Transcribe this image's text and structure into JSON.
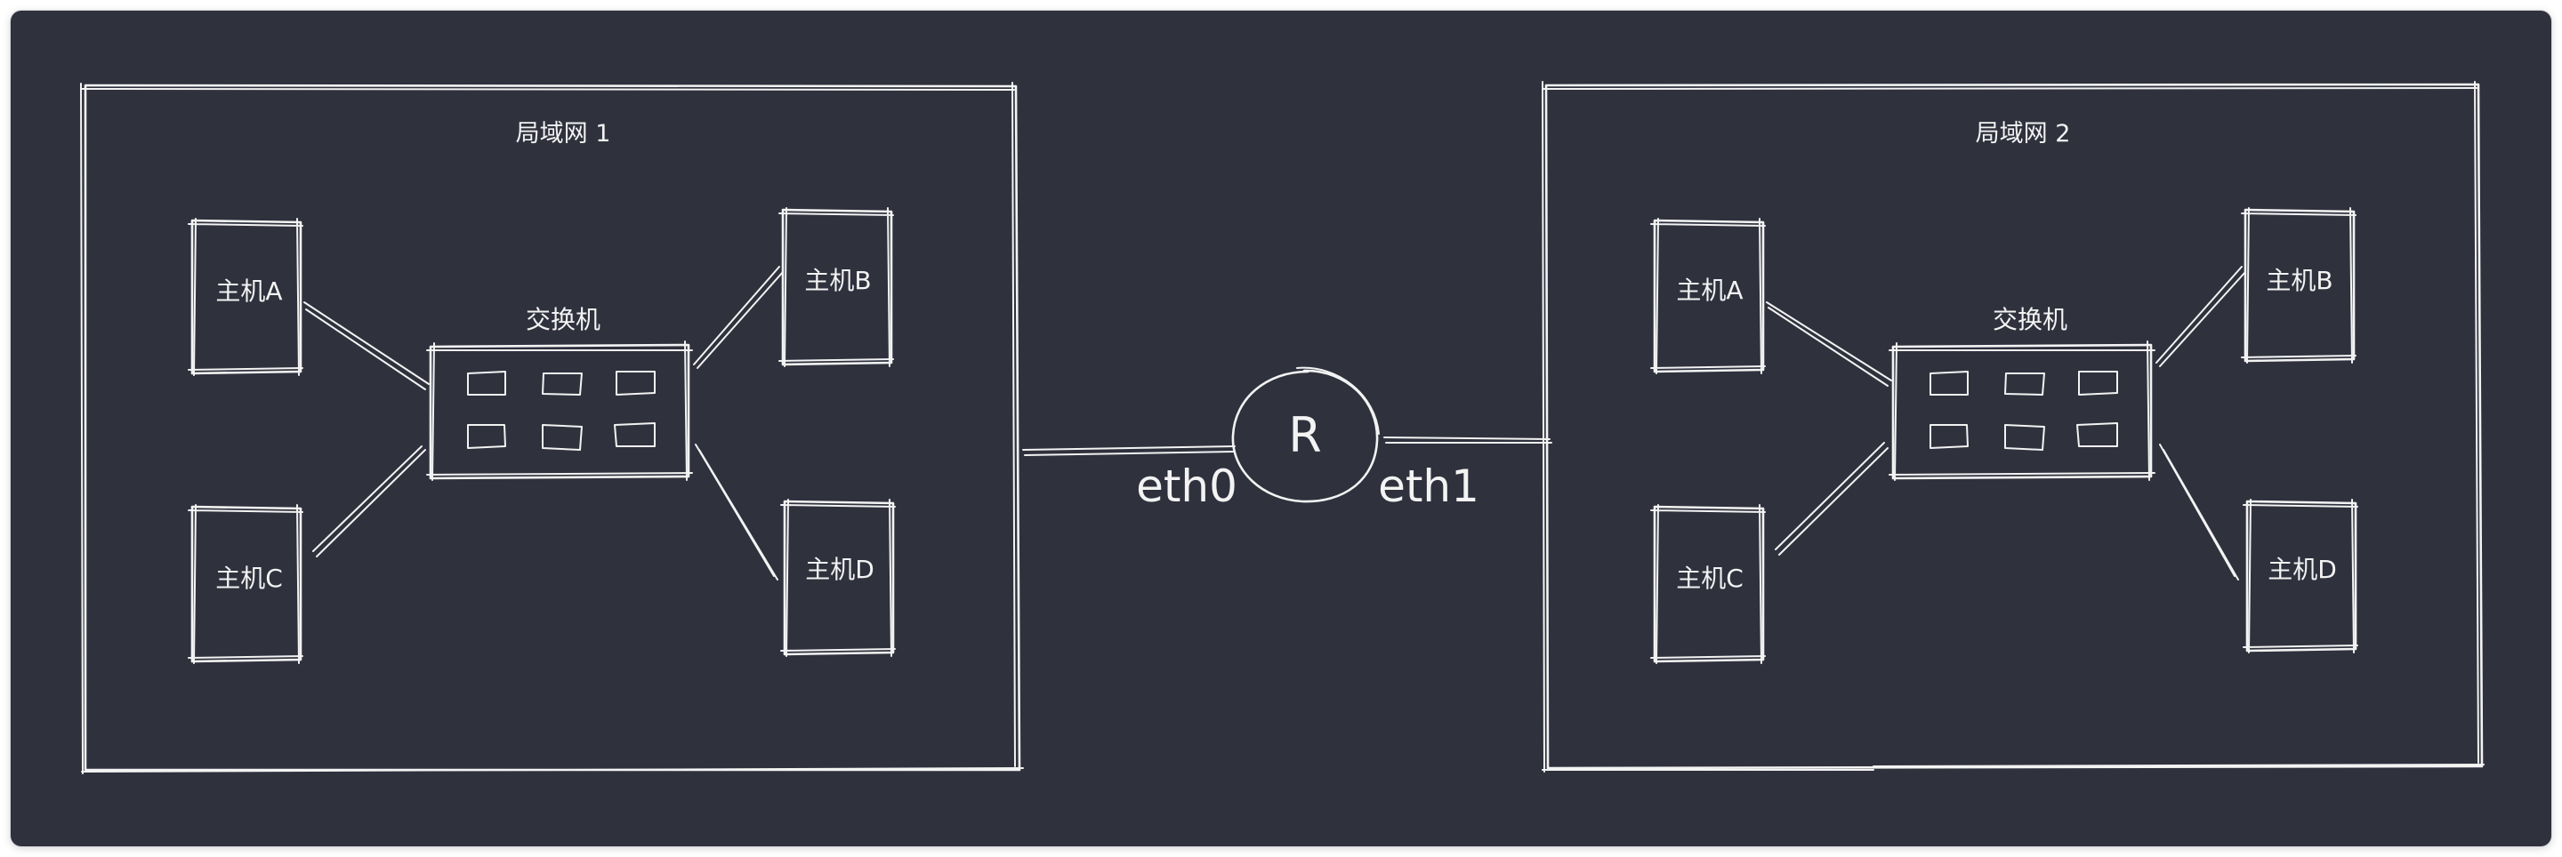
{
  "colors": {
    "canvas": "#2f313d",
    "stroke": "#f3f3f3",
    "page": "#ffffff"
  },
  "diagram": {
    "lan1": {
      "title": "局域网 1",
      "switch_label": "交换机",
      "hosts": {
        "a": "主机A",
        "b": "主机B",
        "c": "主机C",
        "d": "主机D"
      }
    },
    "lan2": {
      "title": "局域网 2",
      "switch_label": "交换机",
      "hosts": {
        "a": "主机A",
        "b": "主机B",
        "c": "主机C",
        "d": "主机D"
      }
    },
    "router": {
      "label": "R",
      "iface_left": "eth0",
      "iface_right": "eth1"
    }
  }
}
